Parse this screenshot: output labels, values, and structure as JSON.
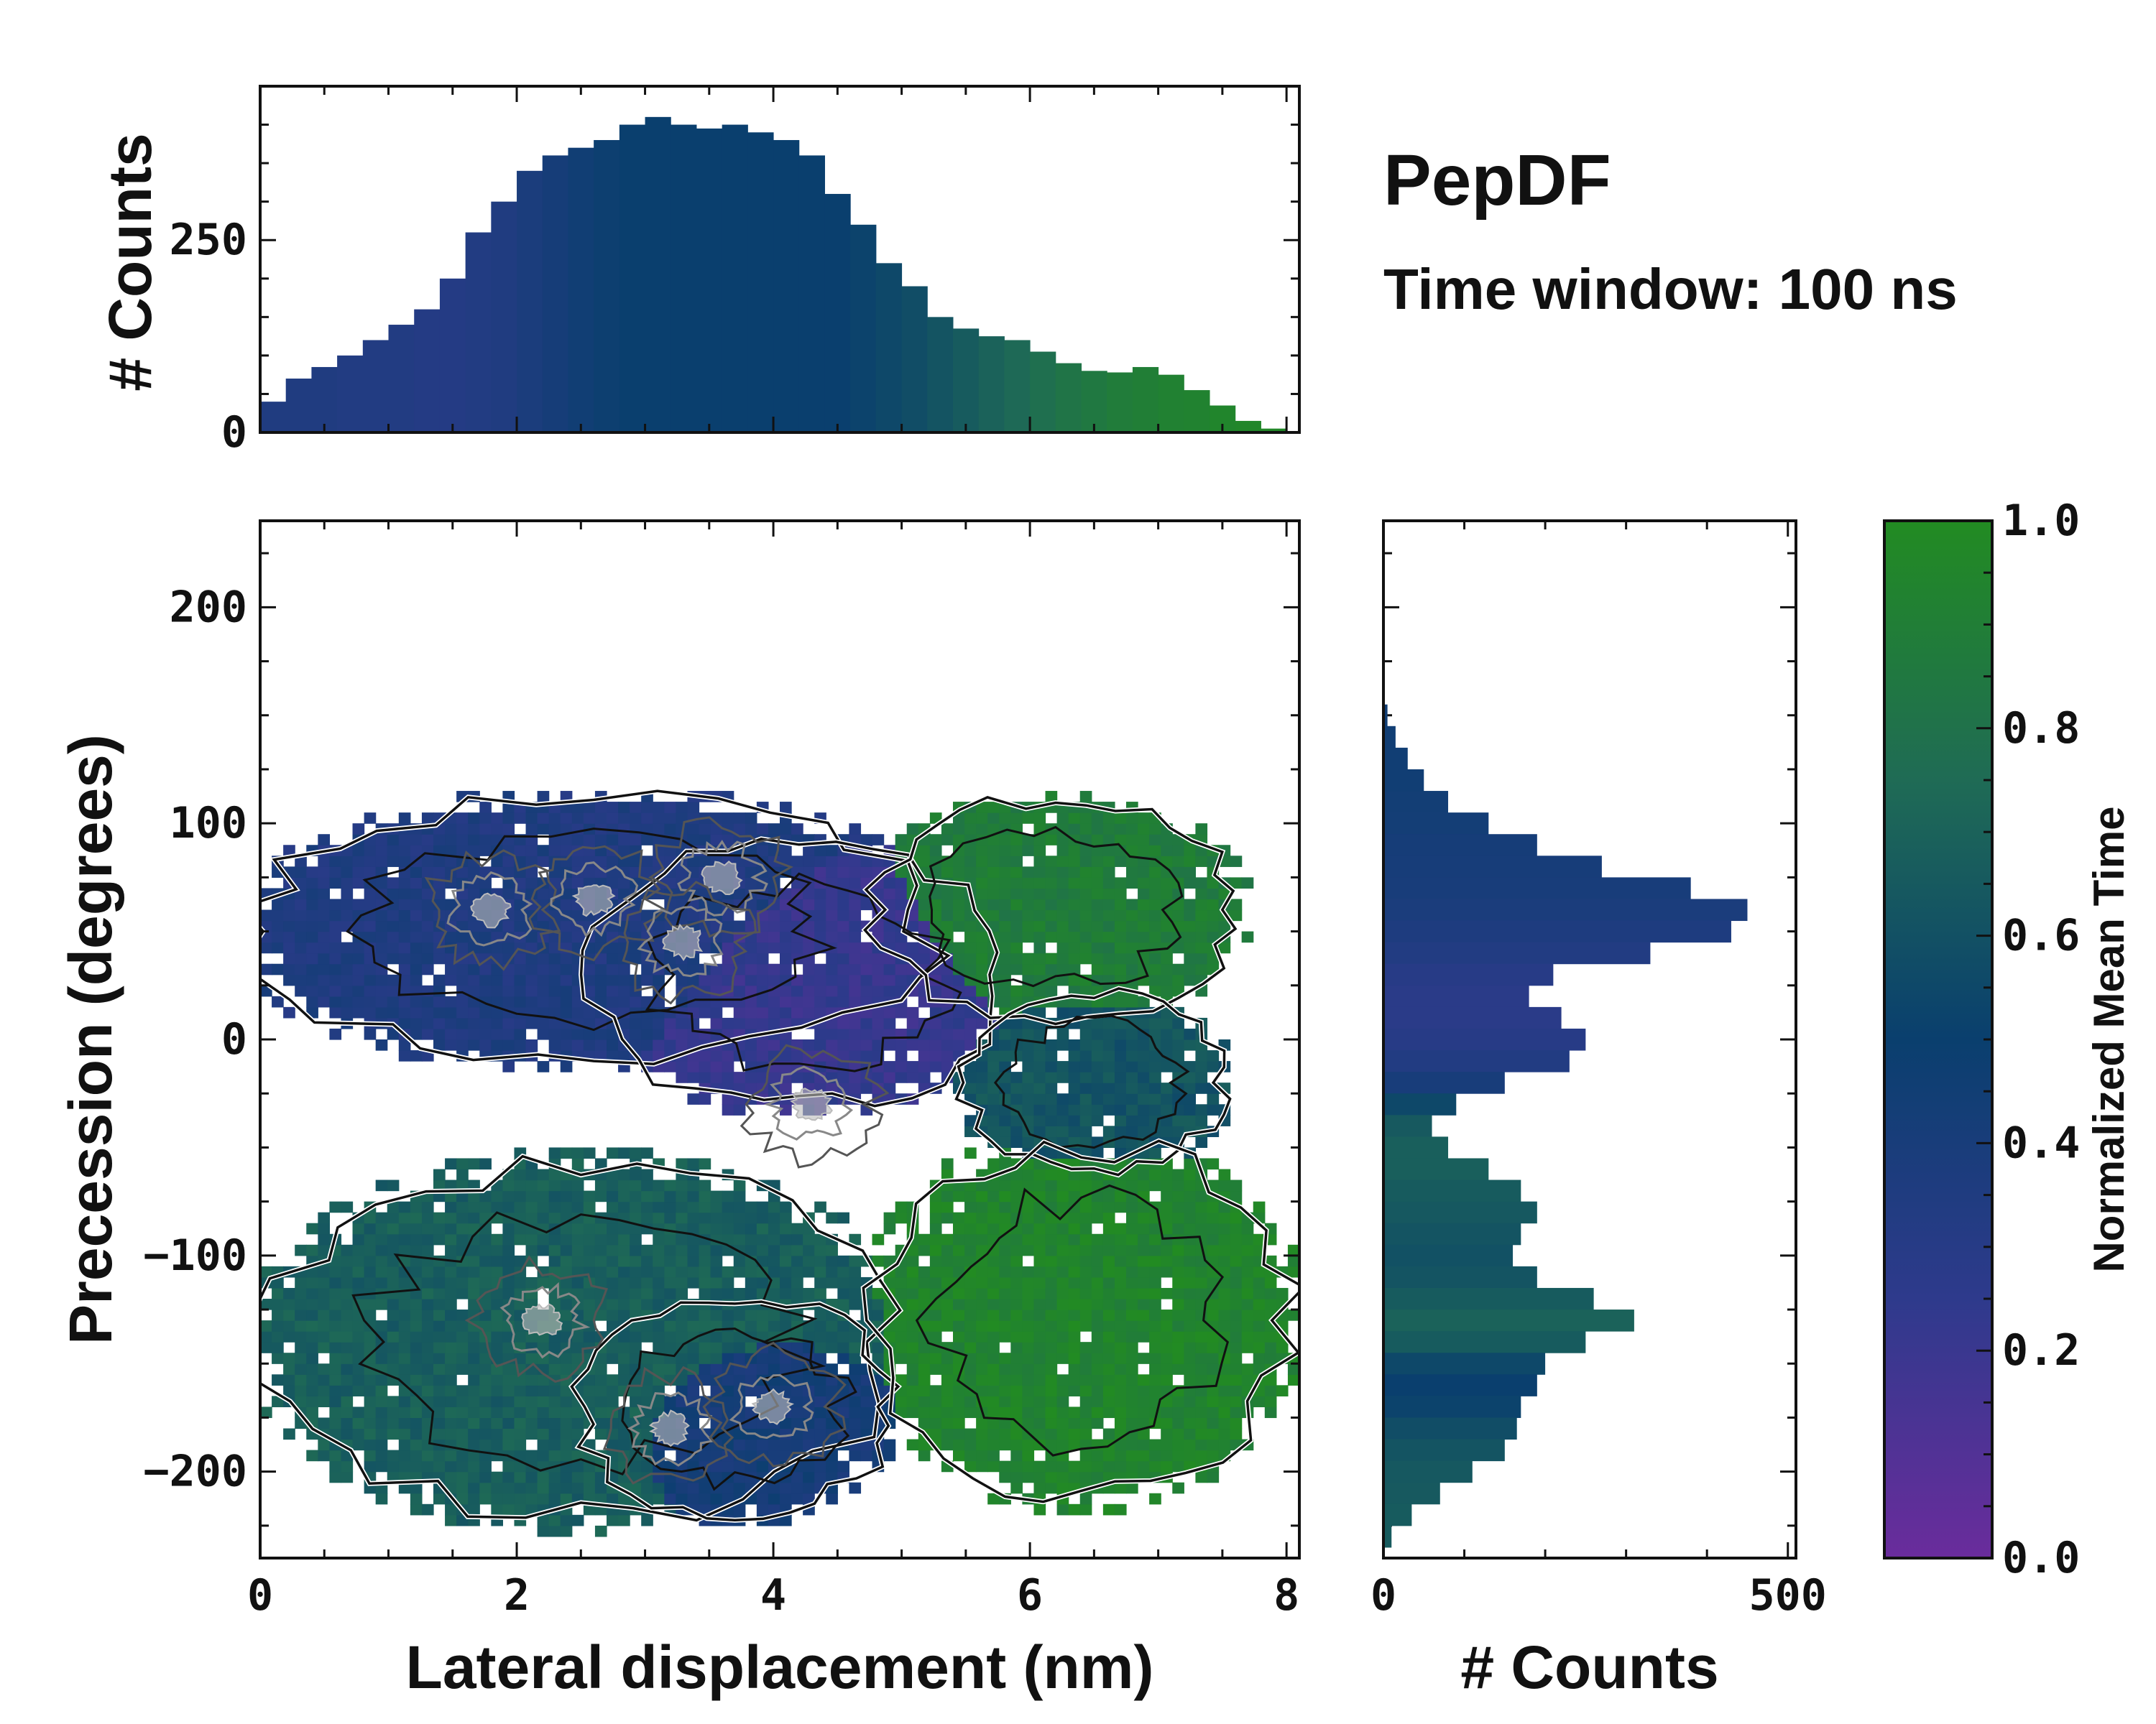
{
  "title": "PepDF",
  "subtitle": "Time window: 100 ns",
  "colors": {
    "cmap_low": "#6a2c9c",
    "cmap_mid_low": "#2e3a8c",
    "cmap_mid": "#0a3f6e",
    "cmap_mid_high": "#1f6b55",
    "cmap_high": "#228b22",
    "contour_dark": "#111111",
    "contour_light": "#bbbbbb",
    "outline": "#ffffff"
  },
  "chart_data": [
    {
      "id": "top-histogram",
      "type": "bar",
      "ylabel": "# Counts",
      "xlim": [
        0,
        8.1
      ],
      "ylim": [
        0,
        450
      ],
      "yticks": [
        0,
        250
      ],
      "x": [
        0.1,
        0.3,
        0.5,
        0.7,
        0.9,
        1.1,
        1.3,
        1.5,
        1.7,
        1.9,
        2.1,
        2.3,
        2.5,
        2.7,
        2.9,
        3.1,
        3.3,
        3.5,
        3.7,
        3.9,
        4.1,
        4.3,
        4.5,
        4.7,
        4.9,
        5.1,
        5.3,
        5.5,
        5.7,
        5.9,
        6.1,
        6.3,
        6.5,
        6.7,
        6.9,
        7.1,
        7.3,
        7.5,
        7.7,
        7.9
      ],
      "values": [
        40,
        70,
        85,
        100,
        120,
        140,
        160,
        200,
        260,
        300,
        340,
        360,
        370,
        380,
        400,
        410,
        400,
        395,
        400,
        390,
        380,
        360,
        310,
        270,
        220,
        190,
        150,
        135,
        125,
        120,
        105,
        90,
        80,
        78,
        85,
        75,
        55,
        35,
        15,
        5
      ],
      "color_values": [
        0.35,
        0.35,
        0.35,
        0.33,
        0.33,
        0.33,
        0.32,
        0.32,
        0.33,
        0.35,
        0.38,
        0.42,
        0.45,
        0.48,
        0.5,
        0.5,
        0.5,
        0.5,
        0.5,
        0.5,
        0.5,
        0.5,
        0.5,
        0.52,
        0.55,
        0.58,
        0.62,
        0.66,
        0.7,
        0.74,
        0.78,
        0.82,
        0.85,
        0.88,
        0.9,
        0.92,
        0.93,
        0.95,
        0.96,
        0.97
      ]
    },
    {
      "id": "joint-distribution",
      "type": "heatmap",
      "xlabel": "Lateral displacement (nm)",
      "ylabel": "Precession (degrees)",
      "xlim": [
        0,
        8.1
      ],
      "ylim": [
        -240,
        240
      ],
      "xticks": [
        0,
        2,
        4,
        6,
        8
      ],
      "yticks": [
        -200,
        -100,
        0,
        100,
        200
      ],
      "value_label": "Normalized Mean Time",
      "regions": [
        {
          "name": "upper-left cluster",
          "x_center": 2.6,
          "y_center": 50,
          "x_halfwidth": 2.6,
          "y_halfwidth": 60,
          "mean_time": 0.35
        },
        {
          "name": "upper-middle cluster",
          "x_center": 4.2,
          "y_center": 30,
          "x_halfwidth": 1.6,
          "y_halfwidth": 60,
          "mean_time": 0.22
        },
        {
          "name": "upper-right cluster",
          "x_center": 6.2,
          "y_center": 60,
          "x_halfwidth": 1.4,
          "y_halfwidth": 50,
          "mean_time": 0.88
        },
        {
          "name": "right cluster",
          "x_center": 6.5,
          "y_center": -20,
          "x_halfwidth": 1.0,
          "y_halfwidth": 40,
          "mean_time": 0.62
        },
        {
          "name": "lower-left cluster",
          "x_center": 2.5,
          "y_center": -140,
          "x_halfwidth": 2.4,
          "y_halfwidth": 80,
          "mean_time": 0.68
        },
        {
          "name": "lower-middle cluster",
          "x_center": 3.7,
          "y_center": -170,
          "x_halfwidth": 1.2,
          "y_halfwidth": 50,
          "mean_time": 0.42
        },
        {
          "name": "lower-right cluster",
          "x_center": 6.4,
          "y_center": -130,
          "x_halfwidth": 1.6,
          "y_halfwidth": 80,
          "mean_time": 0.94
        }
      ],
      "density_peaks": [
        {
          "x": 1.8,
          "y": 60
        },
        {
          "x": 2.6,
          "y": 65
        },
        {
          "x": 3.6,
          "y": 75
        },
        {
          "x": 3.3,
          "y": 45
        },
        {
          "x": 4.3,
          "y": -30
        },
        {
          "x": 2.2,
          "y": -130
        },
        {
          "x": 3.2,
          "y": -180
        },
        {
          "x": 4.0,
          "y": -170
        }
      ]
    },
    {
      "id": "right-histogram",
      "type": "bar",
      "orientation": "horizontal",
      "xlabel": "# Counts",
      "xlim": [
        0,
        510
      ],
      "xticks": [
        0,
        500
      ],
      "ylim": [
        -240,
        240
      ],
      "y": [
        150,
        140,
        130,
        120,
        110,
        100,
        90,
        80,
        70,
        60,
        50,
        40,
        30,
        20,
        10,
        0,
        -10,
        -20,
        -30,
        -40,
        -50,
        -60,
        -70,
        -80,
        -90,
        -100,
        -110,
        -120,
        -130,
        -140,
        -150,
        -160,
        -170,
        -180,
        -190,
        -200,
        -210,
        -220,
        -230
      ],
      "values": [
        5,
        15,
        30,
        50,
        80,
        130,
        190,
        270,
        380,
        450,
        430,
        330,
        210,
        180,
        220,
        250,
        230,
        150,
        90,
        60,
        80,
        130,
        170,
        190,
        170,
        160,
        190,
        260,
        310,
        250,
        200,
        190,
        170,
        165,
        150,
        110,
        70,
        35,
        10
      ],
      "color_values": [
        0.45,
        0.45,
        0.45,
        0.45,
        0.44,
        0.43,
        0.42,
        0.41,
        0.4,
        0.38,
        0.36,
        0.33,
        0.3,
        0.28,
        0.28,
        0.3,
        0.33,
        0.4,
        0.55,
        0.65,
        0.68,
        0.68,
        0.66,
        0.64,
        0.62,
        0.6,
        0.62,
        0.66,
        0.7,
        0.66,
        0.55,
        0.5,
        0.52,
        0.58,
        0.62,
        0.64,
        0.65,
        0.66,
        0.66
      ]
    },
    {
      "id": "colorbar",
      "type": "colorbar",
      "label": "Normalized Mean Time",
      "range": [
        0.0,
        1.0
      ],
      "ticks": [
        0.0,
        0.2,
        0.4,
        0.6,
        0.8,
        1.0
      ],
      "tick_labels": [
        "0.0",
        "0.2",
        "0.4",
        "0.6",
        "0.8",
        "1.0"
      ]
    }
  ]
}
